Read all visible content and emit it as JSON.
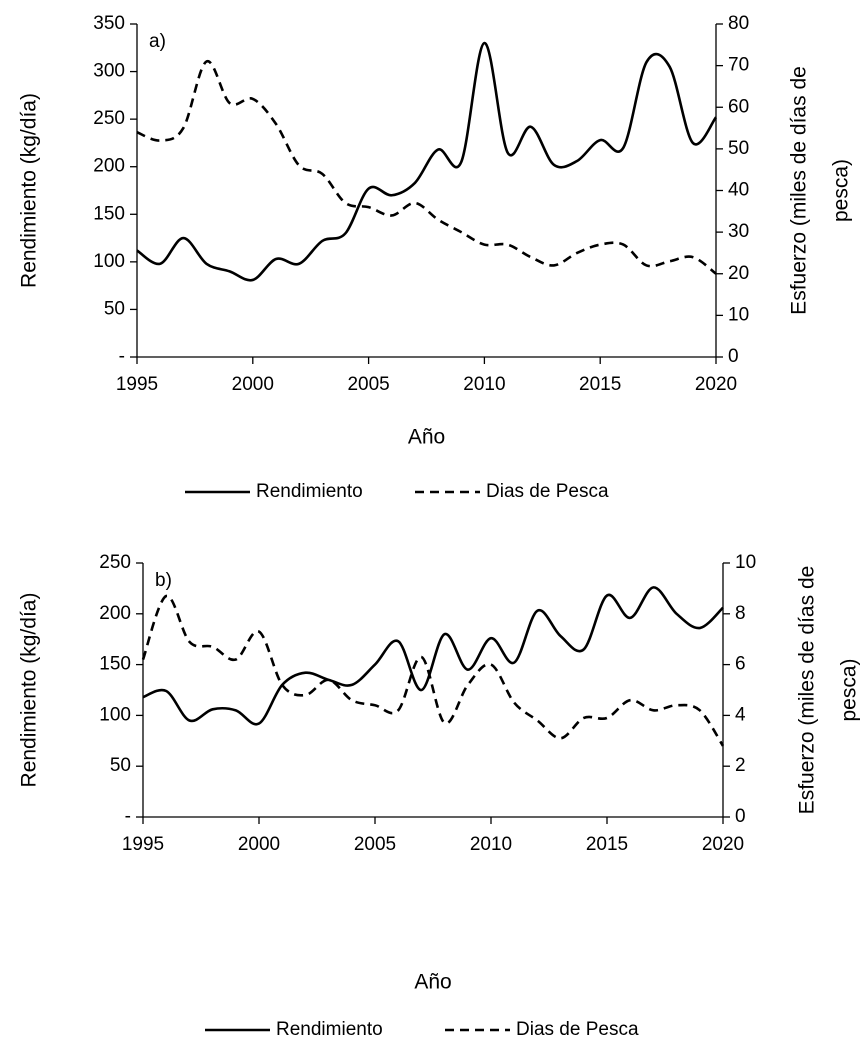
{
  "chart_data": [
    {
      "type": "line",
      "annotation": "a)",
      "xlabel": "Año",
      "ylabel": "Rendimiento (kg/día)",
      "y2label": [
        "Esfuerzo (miles de días de",
        "pesca)"
      ],
      "x": [
        1995,
        1996,
        1997,
        1998,
        1999,
        2000,
        2001,
        2002,
        2003,
        2004,
        2005,
        2006,
        2007,
        2008,
        2009,
        2010,
        2011,
        2012,
        2013,
        2014,
        2015,
        2016,
        2017,
        2018,
        2019,
        2020
      ],
      "xlim": [
        1995,
        2020
      ],
      "xticks": [
        1995,
        2000,
        2005,
        2010,
        2015,
        2020
      ],
      "ylim": [
        0,
        350
      ],
      "yticks": [
        {
          "value": 0,
          "label": "-"
        },
        50,
        100,
        150,
        200,
        250,
        300,
        350
      ],
      "y2lim": [
        0,
        80
      ],
      "y2ticks": [
        0,
        10,
        20,
        30,
        40,
        50,
        60,
        70,
        80
      ],
      "grid": false,
      "legend": "bottom",
      "series": [
        {
          "name": "Rendimiento",
          "color": "#000000",
          "dash": "solid",
          "values": [
            112,
            98,
            125,
            98,
            90,
            81,
            103,
            98,
            122,
            130,
            177,
            170,
            183,
            218,
            205,
            330,
            215,
            242,
            202,
            206,
            228,
            220,
            310,
            305,
            225,
            252
          ]
        },
        {
          "name": "Dias de Pesca",
          "color": "#000000",
          "dash": "dashed",
          "axis": "y2",
          "values": [
            54,
            52,
            55,
            71,
            61,
            62,
            56,
            46,
            44,
            37,
            36,
            34,
            37,
            33,
            30,
            27,
            27,
            24,
            22,
            25,
            27,
            27,
            22,
            23,
            24,
            20
          ]
        }
      ]
    },
    {
      "type": "line",
      "annotation": "b)",
      "xlabel": "Año",
      "ylabel": "Rendimiento (kg/día)",
      "y2label": [
        "Esfuerzo (miles de días de",
        "pesca)"
      ],
      "x": [
        1995,
        1996,
        1997,
        1998,
        1999,
        2000,
        2001,
        2002,
        2003,
        2004,
        2005,
        2006,
        2007,
        2008,
        2009,
        2010,
        2011,
        2012,
        2013,
        2014,
        2015,
        2016,
        2017,
        2018,
        2019,
        2020
      ],
      "xlim": [
        1995,
        2020
      ],
      "xticks": [
        1995,
        2000,
        2005,
        2010,
        2015,
        2020
      ],
      "ylim": [
        0,
        250
      ],
      "yticks": [
        {
          "value": 0,
          "label": "-"
        },
        50,
        100,
        150,
        200,
        250
      ],
      "y2lim": [
        0,
        10
      ],
      "y2ticks": [
        0,
        2,
        4,
        6,
        8,
        10
      ],
      "grid": false,
      "legend": "bottom",
      "series": [
        {
          "name": "Rendimiento",
          "color": "#000000",
          "dash": "solid",
          "values": [
            118,
            124,
            95,
            106,
            105,
            92,
            130,
            142,
            135,
            130,
            150,
            173,
            125,
            180,
            145,
            176,
            152,
            203,
            178,
            165,
            218,
            196,
            226,
            200,
            186,
            206
          ]
        },
        {
          "name": "Dias de Pesca",
          "color": "#000000",
          "dash": "dashed",
          "axis": "y2",
          "values": [
            6.2,
            8.7,
            6.9,
            6.7,
            6.2,
            7.3,
            5.2,
            4.8,
            5.4,
            4.6,
            4.4,
            4.2,
            6.3,
            3.7,
            5.2,
            6.0,
            4.5,
            3.8,
            3.1,
            3.9,
            3.9,
            4.6,
            4.2,
            4.4,
            4.2,
            2.8
          ]
        }
      ]
    }
  ]
}
